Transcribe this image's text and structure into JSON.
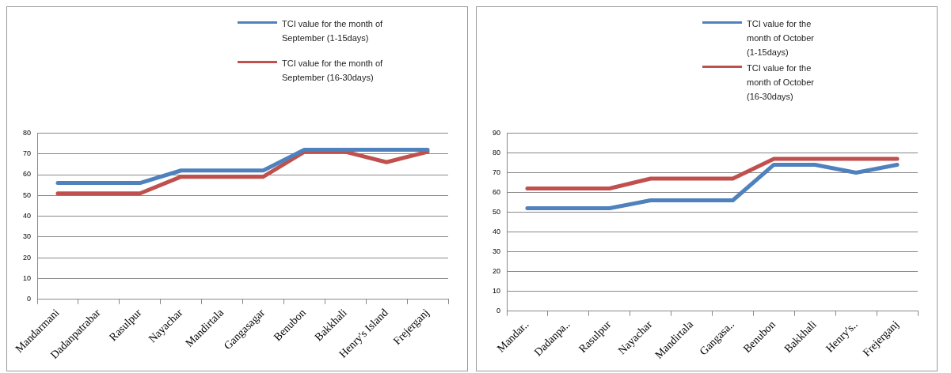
{
  "chart_data": [
    {
      "type": "line",
      "categories": [
        "Mandarmani",
        "Dadanpatrabar",
        "Rasulpur",
        "Nayachar",
        "Mandirtala",
        "Gangasagar",
        "Benubon",
        "Bakkhali",
        "Henry's Island",
        "Frejerganj"
      ],
      "series": [
        {
          "name": "TCI value for the month of September (1-15days)",
          "color": "#4f81bd",
          "values": [
            56,
            56,
            56,
            62,
            62,
            62,
            72,
            72,
            72,
            72
          ]
        },
        {
          "name": "TCI value for the month of September (16-30days)",
          "color": "#c0504d",
          "values": [
            51,
            51,
            51,
            59,
            59,
            59,
            71,
            71,
            66,
            71
          ]
        }
      ],
      "ylim": [
        0,
        80
      ],
      "yticks": [
        0,
        10,
        20,
        30,
        40,
        50,
        60,
        70,
        80
      ],
      "grid": "y",
      "legend": "top right",
      "marker": "none",
      "line_style": "solid"
    },
    {
      "type": "line",
      "categories": [
        "Mandar..",
        "Dadanpa..",
        "Rasulpur",
        "Nayachar",
        "Mandirtala",
        "Gangasa..",
        "Benubon",
        "Bakkhali",
        "Henry's..",
        "Frejerganj"
      ],
      "series": [
        {
          "name": "TCI value for the month of October (1-15days)",
          "color": "#4f81bd",
          "values": [
            52,
            52,
            52,
            56,
            56,
            56,
            74,
            74,
            70,
            74
          ]
        },
        {
          "name": "TCI value for the month of October (16-30days)",
          "color": "#c0504d",
          "values": [
            62,
            62,
            62,
            67,
            67,
            67,
            77,
            77,
            77,
            77
          ]
        }
      ],
      "ylim": [
        0,
        90
      ],
      "yticks": [
        0,
        10,
        20,
        30,
        40,
        50,
        60,
        70,
        80,
        90
      ],
      "grid": "y",
      "legend": "top right",
      "marker": "none",
      "line_style": "solid"
    }
  ]
}
